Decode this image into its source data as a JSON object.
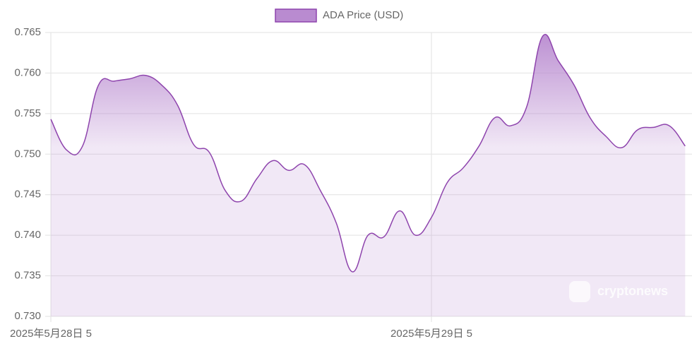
{
  "chart_data": {
    "type": "area",
    "legend": "ADA Price (USD)",
    "watermark": "cryptonews",
    "color": "#8e44ad",
    "fill": "#b98bd0",
    "categories": [
      "2025年5月28日 5",
      null,
      null,
      null,
      null,
      null,
      null,
      null,
      null,
      null,
      null,
      null,
      null,
      null,
      null,
      null,
      null,
      null,
      null,
      null,
      null,
      null,
      null,
      null,
      "2025年5月29日 5",
      null,
      null,
      null,
      null,
      null,
      null,
      null,
      null,
      null,
      null,
      null,
      null,
      null,
      null,
      null,
      null
    ],
    "values": [
      0.7543,
      0.7505,
      0.751,
      0.7585,
      0.759,
      0.7593,
      0.7597,
      0.7585,
      0.756,
      0.7512,
      0.7502,
      0.7455,
      0.7442,
      0.747,
      0.7492,
      0.748,
      0.7487,
      0.7455,
      0.7415,
      0.7355,
      0.74,
      0.7398,
      0.743,
      0.74,
      0.7422,
      0.7465,
      0.7483,
      0.751,
      0.7545,
      0.7535,
      0.7558,
      0.7645,
      0.7615,
      0.7585,
      0.7545,
      0.7522,
      0.7508,
      0.753,
      0.7533,
      0.7535,
      0.751
    ],
    "ylim": [
      0.73,
      0.765
    ],
    "yticks": [
      {
        "value": 0.73,
        "label": "0.730"
      },
      0.735,
      {
        "value": 0.74,
        "label": "0.740"
      },
      0.745,
      {
        "value": 0.75,
        "label": "0.750"
      },
      0.755,
      {
        "value": 0.76,
        "label": "0.760"
      },
      0.765
    ],
    "grid": true
  }
}
